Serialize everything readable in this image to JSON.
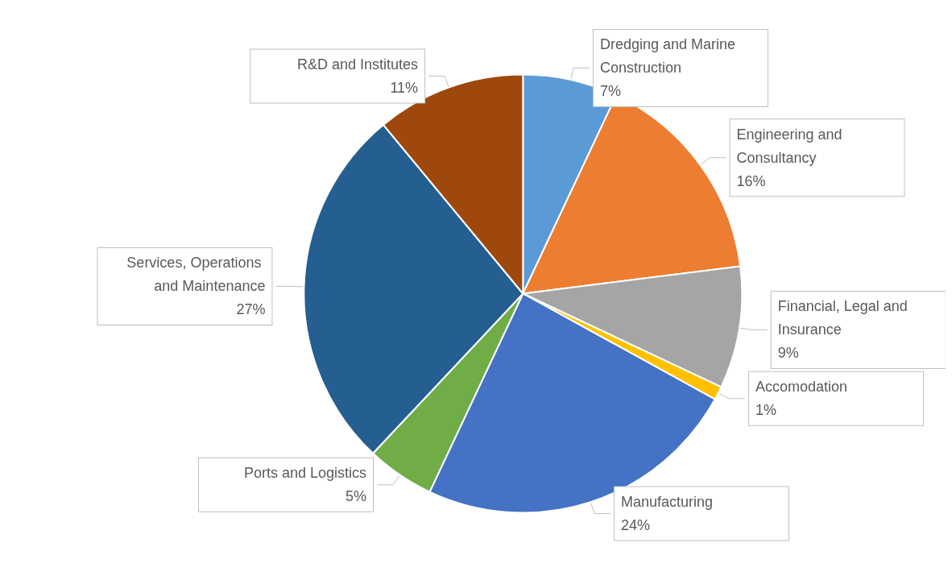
{
  "chart_data": {
    "type": "pie",
    "categories": [
      "Dredging and Marine Construction",
      "Engineering and Consultancy",
      "Financial, Legal and Insurance",
      "Accomodation",
      "Manufacturing",
      "Ports and Logistics",
      "Services, Operations and Maintenance",
      "R&D and Institutes"
    ],
    "values": [
      7,
      16,
      9,
      1,
      24,
      5,
      27,
      11
    ],
    "colors": [
      "#5b9bd5",
      "#ed7d31",
      "#a5a5a5",
      "#ffc000",
      "#4472c4",
      "#70ad47",
      "#255e91",
      "#9e480e"
    ],
    "legend": false,
    "value_labels": [
      "7%",
      "16%",
      "9%",
      "1%",
      "24%",
      "5%",
      "27%",
      "11%"
    ]
  }
}
